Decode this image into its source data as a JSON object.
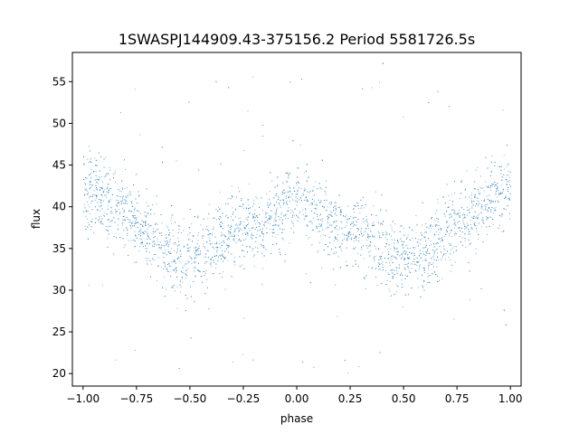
{
  "chart_data": {
    "type": "scatter",
    "title": "1SWASPJ144909.43-375156.2 Period 5581726.5s",
    "xlabel": "phase",
    "ylabel": "flux",
    "xlim": [
      -1.05,
      1.05
    ],
    "ylim": [
      18.5,
      58.5
    ],
    "xticks": [
      -1.0,
      -0.75,
      -0.5,
      -0.25,
      0.0,
      0.25,
      0.5,
      0.75,
      1.0
    ],
    "xtick_labels": [
      "−1.00",
      "−0.75",
      "−0.50",
      "−0.25",
      "0.00",
      "0.25",
      "0.50",
      "0.75",
      "1.00"
    ],
    "yticks": [
      20,
      25,
      30,
      35,
      40,
      45,
      50,
      55
    ],
    "ytick_labels": [
      "20",
      "25",
      "30",
      "35",
      "40",
      "45",
      "50",
      "55"
    ],
    "grid": false,
    "point_color": "#1f77b4",
    "series": [
      {
        "trend_phase": [
          0.0,
          0.05,
          0.1,
          0.15,
          0.2,
          0.25,
          0.3,
          0.35,
          0.4,
          0.45,
          0.5,
          0.55,
          0.6,
          0.65,
          0.7,
          0.75,
          0.8,
          0.85,
          0.9,
          0.95,
          1.0
        ],
        "trend_flux": [
          41.5,
          40.5,
          39,
          38,
          37.5,
          37.5,
          37,
          36,
          35,
          34.5,
          34,
          34,
          35,
          35.5,
          37,
          38,
          39,
          40,
          41,
          42,
          42
        ],
        "spread": 7,
        "x_range": [
          -1.0,
          1.0
        ],
        "flux_range": [
          20,
          57.5
        ]
      }
    ]
  }
}
